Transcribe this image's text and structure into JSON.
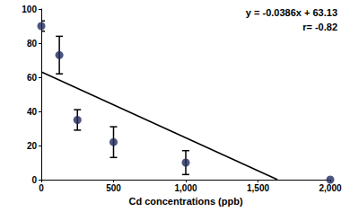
{
  "chart_data": {
    "type": "scatter",
    "xlabel": "Cd concentrations (ppb)",
    "x": [
      0,
      125,
      250,
      500,
      1000,
      2000
    ],
    "values": [
      90,
      73,
      35,
      22,
      10,
      0
    ],
    "errors": [
      3,
      11,
      6,
      9,
      7,
      0
    ],
    "color": "#1f2a5c",
    "marker": "circle",
    "fit": {
      "x": [
        0,
        1635
      ],
      "values": [
        63.13,
        0
      ],
      "color": "#000000"
    },
    "annotations": [
      "y = -0.0386x + 63.13",
      "r= -0.82"
    ],
    "xlim": [
      0,
      2000
    ],
    "xticks": [
      0,
      500,
      1000,
      1500,
      2000
    ],
    "ylim": [
      0,
      100
    ],
    "yticks": [
      0,
      20,
      40,
      60,
      80,
      100
    ],
    "grid": false
  }
}
